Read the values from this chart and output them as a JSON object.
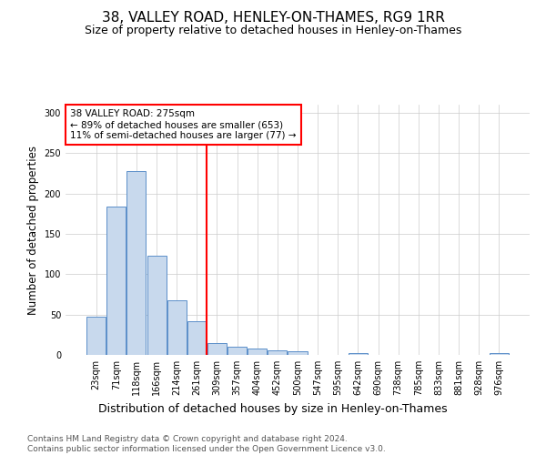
{
  "title": "38, VALLEY ROAD, HENLEY-ON-THAMES, RG9 1RR",
  "subtitle": "Size of property relative to detached houses in Henley-on-Thames",
  "xlabel": "Distribution of detached houses by size in Henley-on-Thames",
  "ylabel": "Number of detached properties",
  "categories": [
    "23sqm",
    "71sqm",
    "118sqm",
    "166sqm",
    "214sqm",
    "261sqm",
    "309sqm",
    "357sqm",
    "404sqm",
    "452sqm",
    "500sqm",
    "547sqm",
    "595sqm",
    "642sqm",
    "690sqm",
    "738sqm",
    "785sqm",
    "833sqm",
    "881sqm",
    "928sqm",
    "976sqm"
  ],
  "values": [
    47,
    184,
    228,
    123,
    68,
    42,
    15,
    10,
    8,
    6,
    4,
    0,
    0,
    2,
    0,
    0,
    0,
    0,
    0,
    0,
    2
  ],
  "bar_color": "#c8d9ed",
  "bar_edge_color": "#5b8fc9",
  "vline_x": 5.5,
  "vline_color": "red",
  "annotation_text": "38 VALLEY ROAD: 275sqm\n← 89% of detached houses are smaller (653)\n11% of semi-detached houses are larger (77) →",
  "annotation_box_color": "white",
  "annotation_box_edge": "red",
  "ylim": [
    0,
    310
  ],
  "yticks": [
    0,
    50,
    100,
    150,
    200,
    250,
    300
  ],
  "footer": "Contains HM Land Registry data © Crown copyright and database right 2024.\nContains public sector information licensed under the Open Government Licence v3.0.",
  "title_fontsize": 11,
  "subtitle_fontsize": 9,
  "xlabel_fontsize": 9,
  "ylabel_fontsize": 8.5,
  "tick_fontsize": 7,
  "footer_fontsize": 6.5,
  "annotation_fontsize": 7.5
}
